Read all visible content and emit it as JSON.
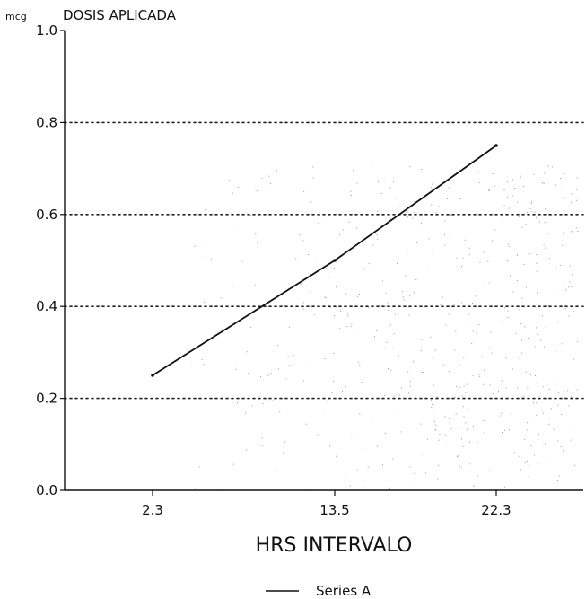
{
  "chart_data": {
    "type": "line",
    "title": "DOSIS APLICADA",
    "unit_label": "mcg",
    "xlabel": "HRS INTERVALO",
    "ylabel": "",
    "categories": [
      "2.3",
      "13.5",
      "22.3"
    ],
    "series": [
      {
        "name": "Series A",
        "values": [
          0.25,
          0.5,
          0.75
        ]
      }
    ],
    "ylim": [
      0,
      1.0
    ],
    "yticks": [
      "0.0",
      "0.2",
      "0.4",
      "0.6",
      "0.8",
      "1.0"
    ],
    "grid": "horizontal-dotted",
    "legend_position": "bottom-center",
    "line_color": "#111111"
  }
}
